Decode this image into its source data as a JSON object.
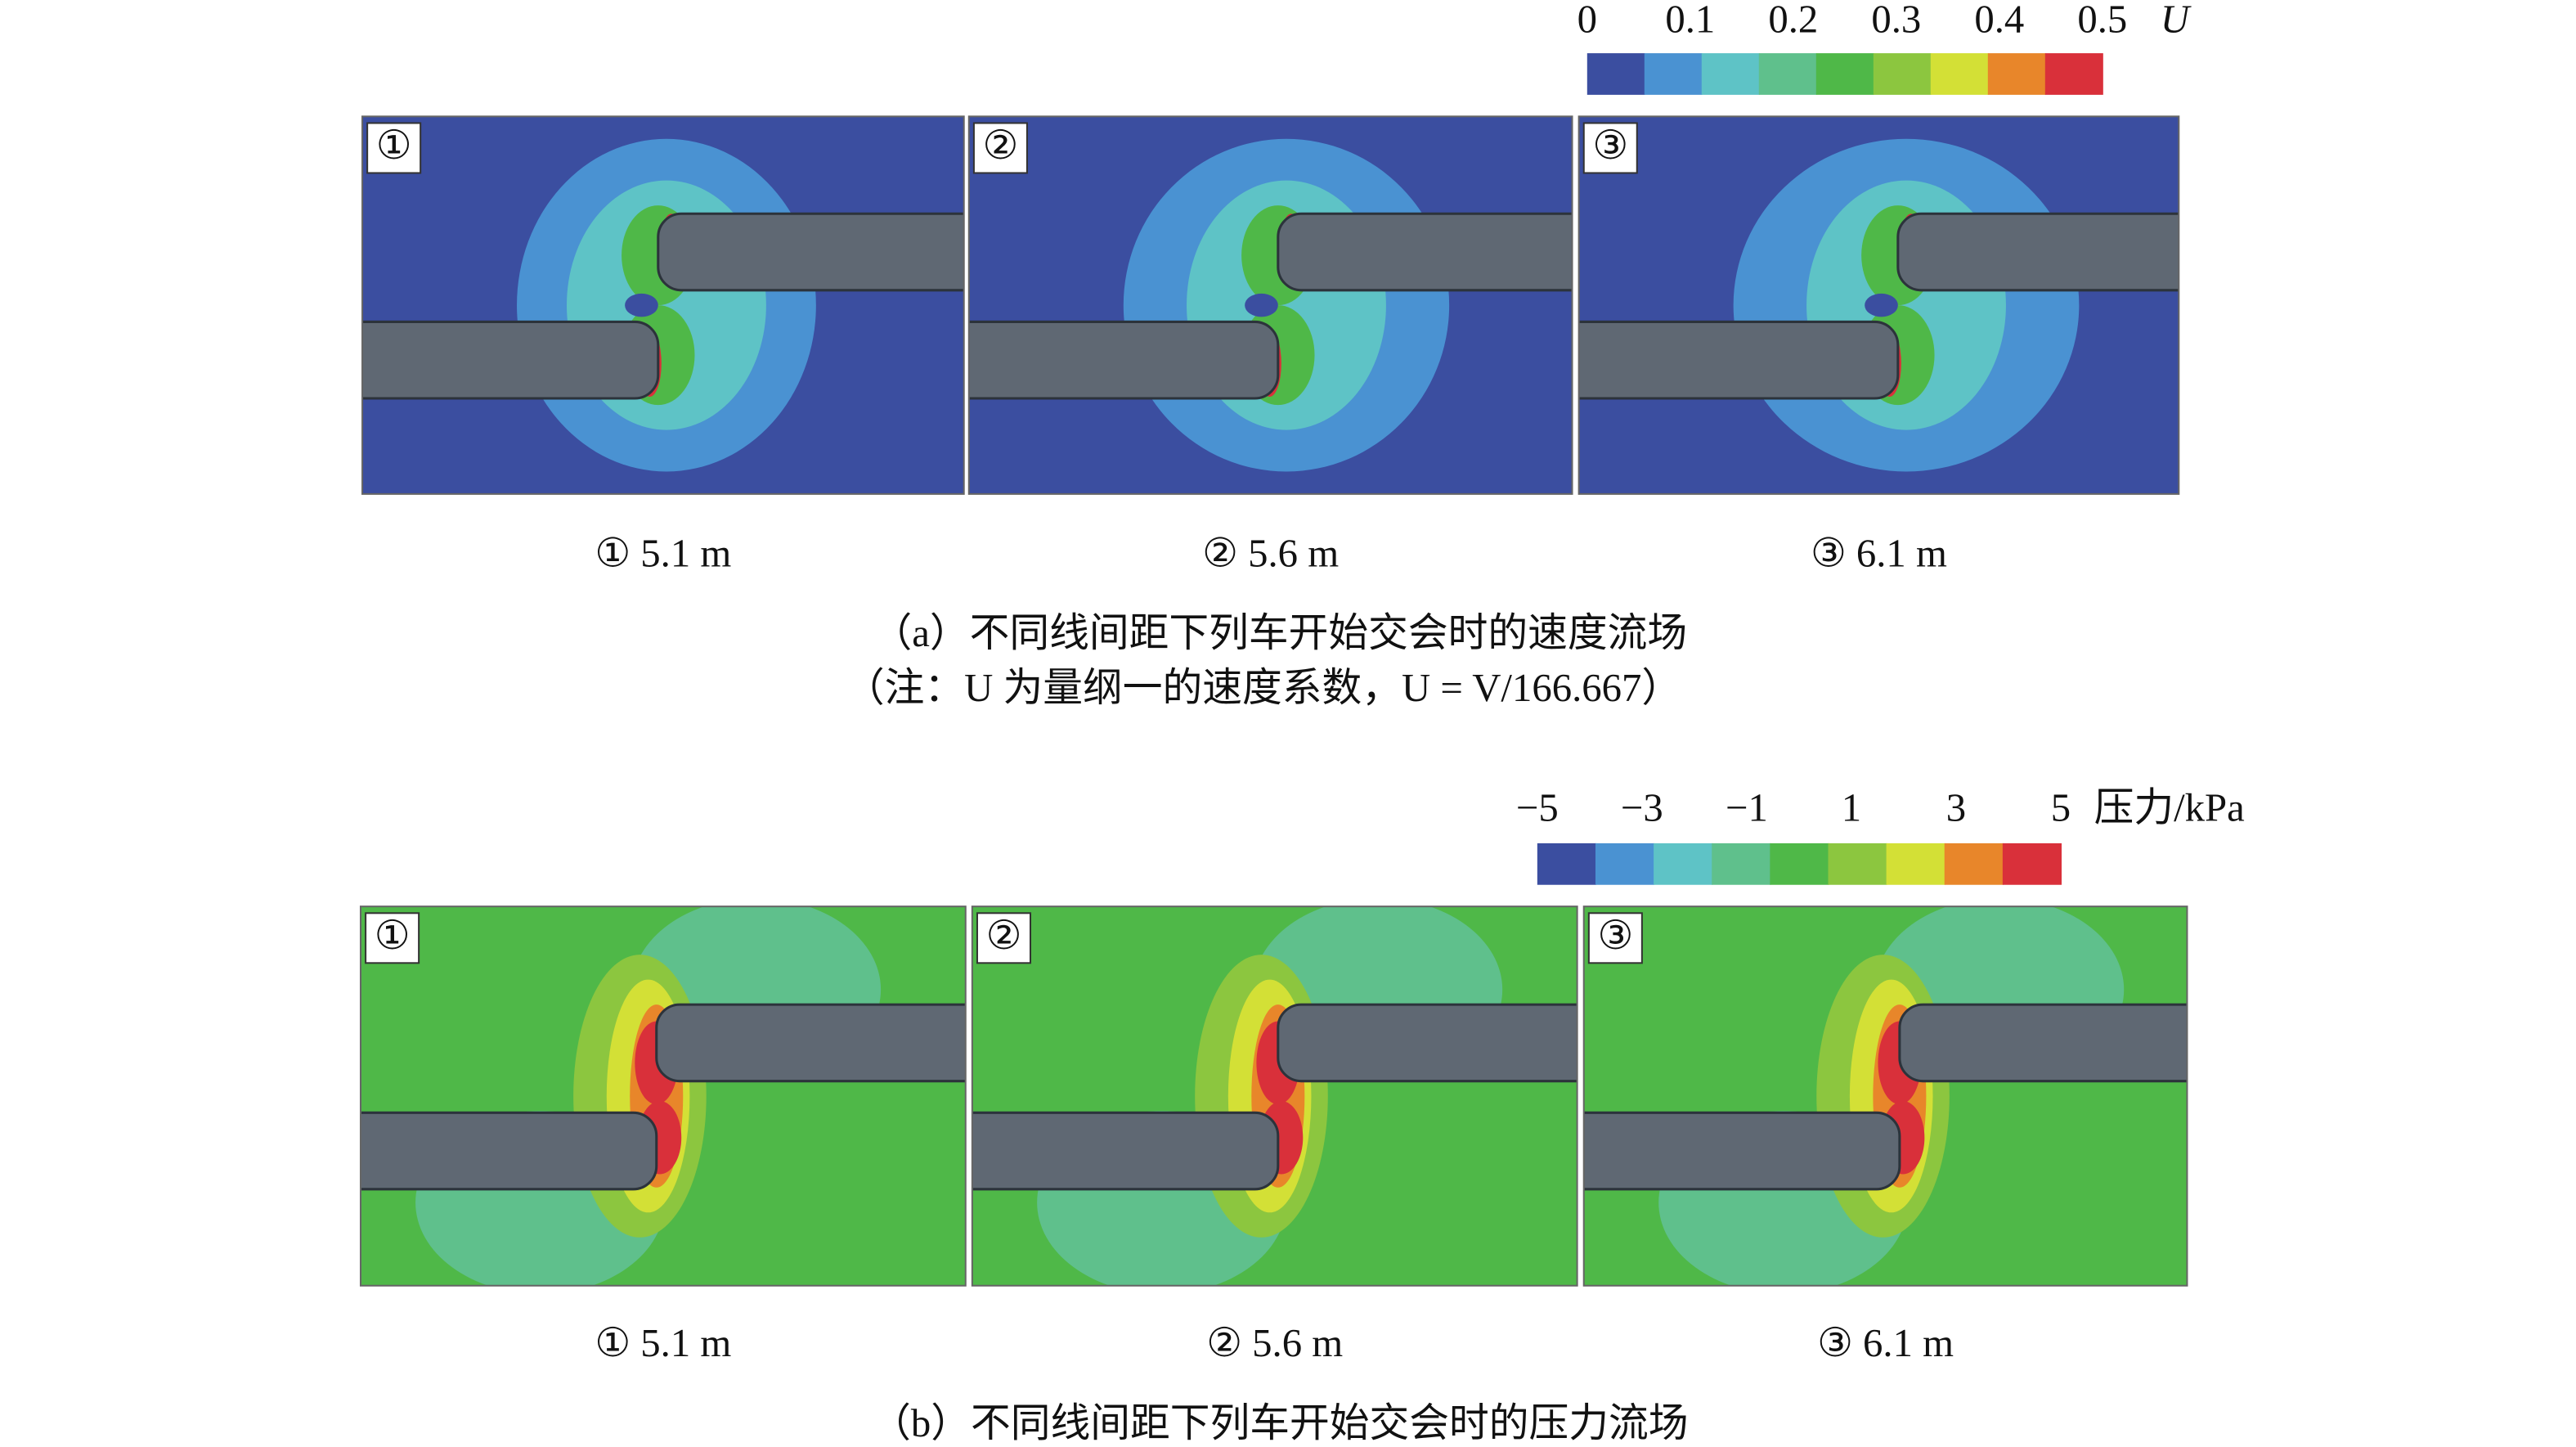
{
  "panel_a": {
    "colorbar": {
      "ticks": [
        "0",
        "0.1",
        "0.2",
        "0.3",
        "0.4",
        "0.5"
      ],
      "unit": "U",
      "colors": [
        "#3b4ea0",
        "#4a92d2",
        "#5ec3c6",
        "#5fc08c",
        "#4fb848",
        "#8cc63f",
        "#d3e036",
        "#e8862a",
        "#d9303a"
      ]
    },
    "plots": [
      {
        "tag": "①",
        "label": "① 5.1 m"
      },
      {
        "tag": "②",
        "label": "② 5.6 m"
      },
      {
        "tag": "③",
        "label": "③ 6.1 m"
      }
    ],
    "caption": "（a）不同线间距下列车开始交会时的速度流场",
    "note": "（注：U 为量纲一的速度系数，U = V/166.667）"
  },
  "panel_b": {
    "colorbar": {
      "ticks": [
        "−5",
        "−3",
        "−1",
        "1",
        "3",
        "5"
      ],
      "unit": "压力/kPa",
      "colors": [
        "#3b4ea0",
        "#4a92d2",
        "#5ec3c6",
        "#5fc08c",
        "#4fb848",
        "#8cc63f",
        "#d3e036",
        "#e8862a",
        "#d9303a"
      ]
    },
    "plots": [
      {
        "tag": "①",
        "label": "① 5.1 m"
      },
      {
        "tag": "②",
        "label": "② 5.6 m"
      },
      {
        "tag": "③",
        "label": "③ 6.1 m"
      }
    ],
    "caption": "（b）不同线间距下列车开始交会时的压力流场"
  }
}
